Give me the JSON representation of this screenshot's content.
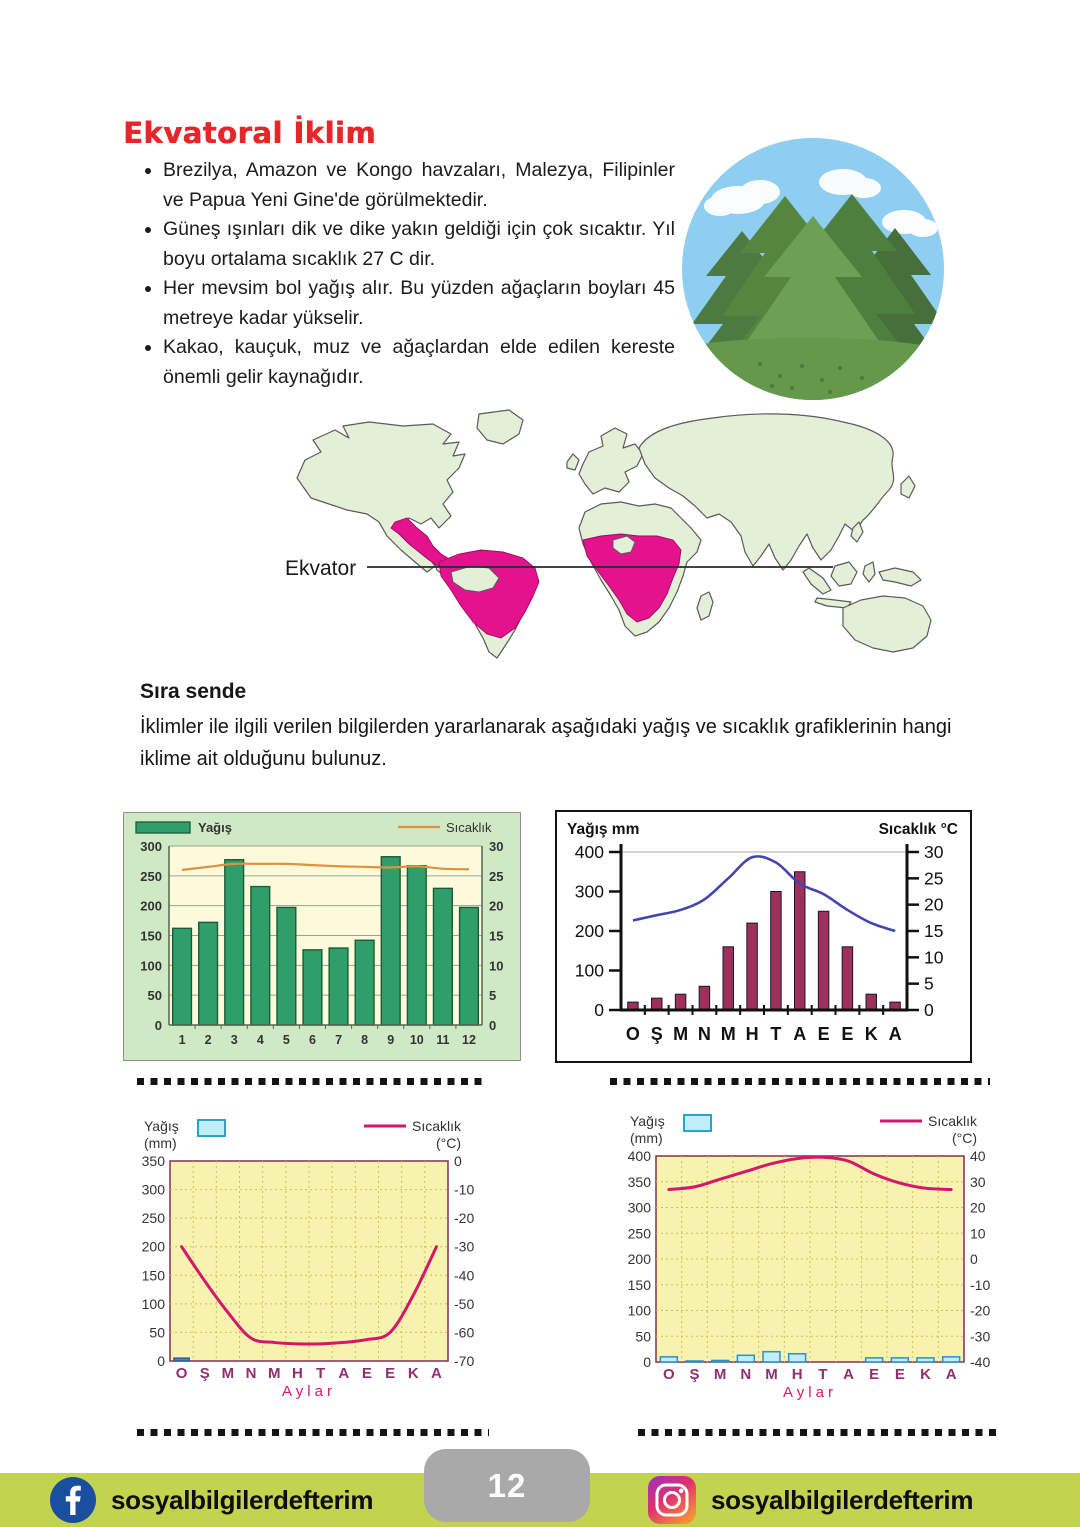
{
  "page": {
    "title": "Ekvatoral İklim",
    "bullets": [
      "Brezilya, Amazon ve Kongo havzaları, Malezya, Filipinler ve Papua Yeni Gine'de görülmektedir.",
      "Güneş ışınları dik ve dike yakın geldiği için çok sıcaktır. Yıl boyu ortalama sıcaklık 27 C dir.",
      "Her mevsim bol yağış alır. Bu yüzden ağaçların boyları 45 metreye kadar yükselir.",
      "Kakao, kauçuk, muz ve ağaçlardan elde edilen kereste önemli gelir kaynağıdır."
    ],
    "map": {
      "equator_label": "Ekvator"
    },
    "exercise": {
      "heading": "Sıra sende",
      "body": "İklimler ile ilgili verilen bilgilerden yararlanarak aşağıdaki yağış ve sıcaklık grafiklerinin hangi iklime ait olduğunu bulunuz."
    },
    "footer": {
      "facebook_label": "sosyalbilgilerdefterim",
      "instagram_label": "sosyalbilgilerdefterim",
      "page_number": "12"
    },
    "colors": {
      "title_red": "#e8262a",
      "map_pink": "#e5128e",
      "map_land_green": "#e3efd6",
      "footer_green": "#c2d44f",
      "facebook_blue": "#1a4e9e",
      "tab_gray": "#a9a9a9"
    }
  },
  "chart_data": [
    {
      "id": "chart-top-left",
      "type": "bar",
      "variant": "green",
      "title": "",
      "categories": [
        "1",
        "2",
        "3",
        "4",
        "5",
        "6",
        "7",
        "8",
        "9",
        "10",
        "11",
        "12"
      ],
      "series": [
        {
          "name": "Yağış",
          "type": "bar",
          "axis": "left",
          "values": [
            162,
            172,
            277,
            232,
            197,
            126,
            129,
            142,
            282,
            267,
            229,
            197
          ]
        },
        {
          "name": "Sıcaklık",
          "type": "line",
          "axis": "right",
          "values": [
            26,
            26.5,
            27,
            27,
            27,
            26.8,
            26.6,
            26.5,
            26.4,
            26.6,
            26.2,
            26.1
          ]
        }
      ],
      "axes": {
        "left": {
          "min": 0,
          "max": 300,
          "step": 50
        },
        "right": {
          "min": 0,
          "max": 30,
          "step": 5
        }
      },
      "legend": {
        "bar": "Yağış",
        "line": "Sıcaklık"
      },
      "grid": true,
      "colors": {
        "outerBg": "#cfe9c4",
        "plotBg": "#fdfadc",
        "bar": "#2f9e68",
        "barStroke": "#195c39",
        "line": "#e0913d",
        "grid": "#93a98e",
        "axis": "#55664f",
        "text": "#333333"
      }
    },
    {
      "id": "chart-top-right",
      "type": "bar",
      "variant": "mono",
      "title": "",
      "categories": [
        "O",
        "Ş",
        "M",
        "N",
        "M",
        "H",
        "T",
        "A",
        "E",
        "E",
        "K",
        "A"
      ],
      "series": [
        {
          "name": "Yağış mm",
          "type": "bar",
          "axis": "left",
          "values": [
            20,
            30,
            40,
            60,
            160,
            220,
            300,
            350,
            250,
            160,
            40,
            20
          ]
        },
        {
          "name": "Sıcaklık °C",
          "type": "line",
          "axis": "right",
          "values": [
            17,
            18,
            19,
            21,
            25,
            29,
            28,
            24,
            22,
            19,
            16.5,
            15
          ]
        }
      ],
      "axes": {
        "left": {
          "min": 0,
          "max": 400,
          "step": 100
        },
        "right": {
          "min": 0,
          "max": 30,
          "step": 5
        }
      },
      "labels": {
        "left": "Yağış mm",
        "right": "Sıcaklık °C"
      },
      "grid": false,
      "colors": {
        "plotBg": "#ffffff",
        "bar": "#9e3060",
        "barStroke": "#1a1a1a",
        "line": "#4343b2",
        "axis": "#111111",
        "text": "#111111",
        "topGrid": "#aaaaaa"
      }
    },
    {
      "id": "chart-bottom-left",
      "type": "bar",
      "variant": "yellow",
      "title": "",
      "categories": [
        "O",
        "Ş",
        "M",
        "N",
        "M",
        "H",
        "T",
        "A",
        "E",
        "E",
        "K",
        "A"
      ],
      "series": [
        {
          "name": "Yağış (mm)",
          "type": "bar",
          "axis": "left",
          "values": [
            5,
            0,
            0,
            0,
            0,
            0,
            0,
            0,
            0,
            0,
            0,
            0
          ]
        },
        {
          "name": "Sıcaklık (°C)",
          "type": "line",
          "axis": "right",
          "values": [
            -30,
            -42,
            -53,
            -62,
            -63.5,
            -64,
            -64,
            -63.5,
            -62.5,
            -60,
            -47,
            -30
          ]
        }
      ],
      "axes": {
        "left": {
          "min": 0,
          "max": 350,
          "step": 50
        },
        "right": {
          "min": -70,
          "max": 0,
          "step": 10
        }
      },
      "legend": {
        "bar_line1": "Yağış",
        "bar_line2": "(mm)",
        "line_line1": "Sıcaklık",
        "line_line2": "(°C)"
      },
      "x_title": "Aylar",
      "grid": true,
      "colors": {
        "plotBg": "#f7f2ad",
        "bar": "#4a86c8",
        "barStroke": "#2f5f99",
        "line": "#d4166e",
        "frame": "#8a3a60",
        "grid": "#cdbd6a",
        "text": "#333333",
        "monthText": "#8e2f6e",
        "titleText": "#d4166e",
        "swatchFill": "#bfeef8",
        "swatchStroke": "#29a3c6"
      }
    },
    {
      "id": "chart-bottom-right",
      "type": "bar",
      "variant": "yellow",
      "title": "",
      "categories": [
        "O",
        "Ş",
        "M",
        "N",
        "M",
        "H",
        "T",
        "A",
        "E",
        "E",
        "K",
        "A"
      ],
      "series": [
        {
          "name": "Yağış (mm)",
          "type": "bar",
          "axis": "left",
          "values": [
            10,
            2,
            3,
            13,
            20,
            16,
            0,
            0,
            8,
            8,
            8,
            10
          ]
        },
        {
          "name": "Sıcaklık (°C)",
          "type": "line",
          "axis": "right",
          "values": [
            27,
            28,
            31,
            34,
            37,
            39,
            39.5,
            38,
            33,
            29.5,
            27.5,
            27
          ]
        }
      ],
      "axes": {
        "left": {
          "min": 0,
          "max": 400,
          "step": 50
        },
        "right": {
          "min": -40,
          "max": 40,
          "step": 10
        }
      },
      "legend": {
        "bar_line1": "Yağış",
        "bar_line2": "(mm)",
        "line_line1": "Sıcaklık",
        "line_line2": "(°C)"
      },
      "x_title": "Aylar",
      "grid": true,
      "colors": {
        "plotBg": "#f7f2ad",
        "bar": "#bfeef8",
        "barStroke": "#2f8fc4",
        "line": "#d4166e",
        "frame": "#8a3a60",
        "grid": "#cdbd6a",
        "text": "#333333",
        "monthText": "#8e2f6e",
        "titleText": "#d4166e",
        "swatchFill": "#bfeef8",
        "swatchStroke": "#29a3c6"
      }
    }
  ]
}
